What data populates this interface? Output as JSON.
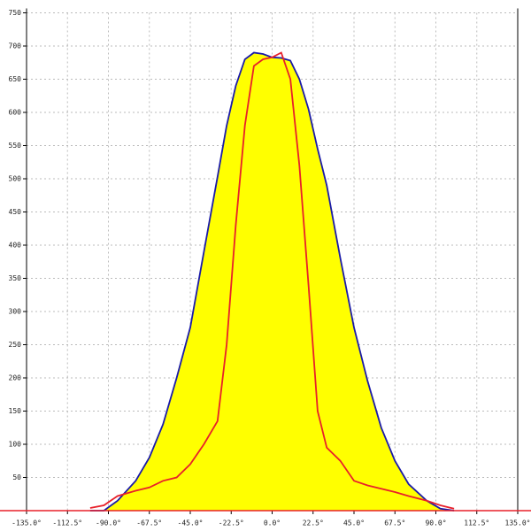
{
  "chart_data": {
    "type": "area",
    "x": [
      -100,
      -92.5,
      -85,
      -75,
      -67.5,
      -60,
      -52.5,
      -45,
      -37.5,
      -30,
      -25,
      -20,
      -15,
      -10,
      -5,
      0,
      5,
      10,
      15,
      20,
      25,
      30,
      37.5,
      45,
      52.5,
      60,
      67.5,
      75,
      85,
      92.5,
      100
    ],
    "series": [
      {
        "color": "#1a1aa8",
        "fill": "#ffff00",
        "values": [
          0,
          0,
          15,
          45,
          80,
          130,
          200,
          276,
          390,
          503,
          580,
          640,
          680,
          690,
          688,
          683,
          682,
          678,
          650,
          605,
          545,
          490,
          380,
          276,
          195,
          125,
          75,
          40,
          15,
          3,
          0
        ]
      },
      {
        "color": "#e8202a",
        "values": [
          4,
          8,
          22,
          30,
          35,
          45,
          50,
          70,
          100,
          135,
          250,
          430,
          580,
          670,
          680,
          683,
          690,
          650,
          520,
          340,
          150,
          95,
          75,
          45,
          38,
          33,
          28,
          22,
          15,
          8,
          3
        ]
      }
    ],
    "xlim": [
      -135,
      135
    ],
    "xticks": [
      {
        "value": -135,
        "label": "-135.0°"
      },
      {
        "value": -112.5,
        "label": "-112.5°"
      },
      {
        "value": -90,
        "label": "-90.0°"
      },
      {
        "value": -67.5,
        "label": "-67.5°"
      },
      {
        "value": -45,
        "label": "-45.0°"
      },
      {
        "value": -22.5,
        "label": "-22.5°"
      },
      {
        "value": 0,
        "label": "0.0°"
      },
      {
        "value": 22.5,
        "label": "22.5°"
      },
      {
        "value": 45,
        "label": "45.0°"
      },
      {
        "value": 67.5,
        "label": "67.5°"
      },
      {
        "value": 90,
        "label": "90.0°"
      },
      {
        "value": 112.5,
        "label": "112.5°"
      },
      {
        "value": 135,
        "label": "135.0°"
      }
    ],
    "ylim": [
      0,
      750
    ],
    "yticks": [
      50,
      100,
      150,
      200,
      250,
      300,
      350,
      400,
      450,
      500,
      550,
      600,
      650,
      700,
      750
    ],
    "grid": true
  }
}
